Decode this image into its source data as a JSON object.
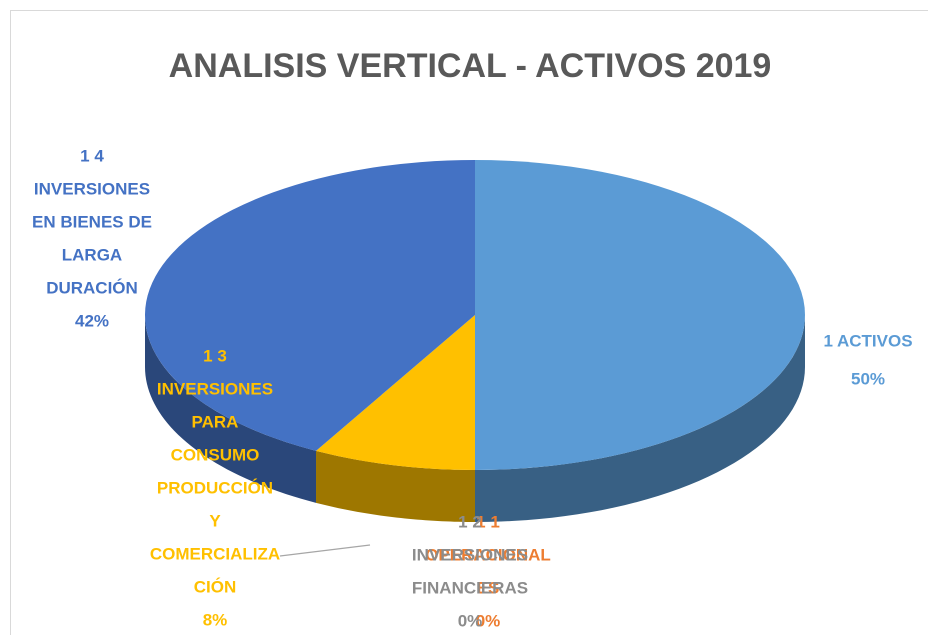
{
  "chart_data": {
    "type": "pie3d",
    "title": "ANALISIS VERTICAL - ACTIVOS 2019",
    "categories": [
      [
        "1 ACTIVOS"
      ],
      [
        "1 1",
        "OPERACIONAL",
        "ES"
      ],
      [
        "1 2",
        "INVERSIONES",
        "FINANCIERAS"
      ],
      [
        "1 3",
        "INVERSIONES",
        "PARA",
        "CONSUMO",
        "PRODUCCIÓN",
        "Y",
        "COMERCIALIZA",
        "CIÓN"
      ],
      [
        "1 4",
        "INVERSIONES",
        "EN BIENES DE",
        "LARGA",
        "DURACIÓN"
      ]
    ],
    "values": [
      50,
      0,
      0,
      8,
      42
    ],
    "value_labels": [
      "50%",
      "0%",
      "0%",
      "8%",
      "42%"
    ],
    "colors": [
      "#5b9bd5",
      "#ed7d31",
      "#a5a5a5",
      "#ffc000",
      "#4472c4"
    ]
  }
}
